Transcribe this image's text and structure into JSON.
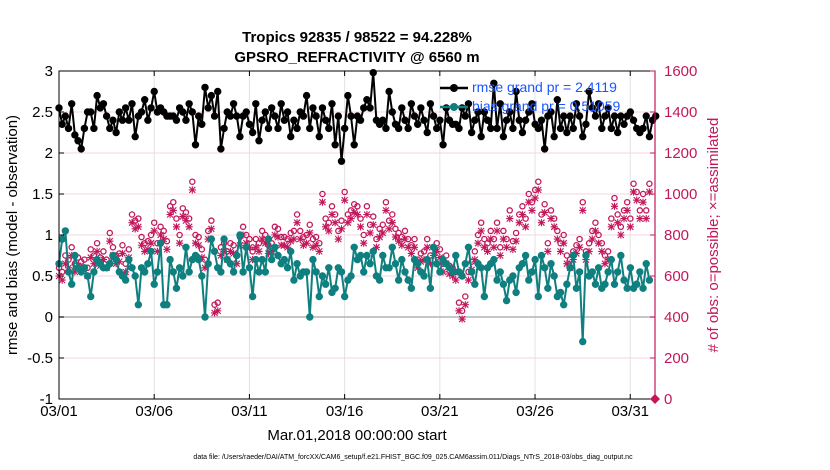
{
  "chart_data": {
    "type": "line",
    "title": "Tropics 92835 / 98522 = 94.228%",
    "subtitle": "GPSRO_REFRACTIVITY @ 6560 m",
    "xlabel": "Mar.01,2018 00:00:00 start",
    "ylabel_left": "rmse and bias (model - observation)",
    "ylabel_right": "# of obs: o=possible; ×=assimilated",
    "x_range": [
      1,
      32.3
    ],
    "ylim_left": [
      -1,
      3
    ],
    "ylim_right": [
      0,
      1600
    ],
    "x_ticks": [
      {
        "value": 1,
        "label": "03/01"
      },
      {
        "value": 6,
        "label": "03/06"
      },
      {
        "value": 11,
        "label": "03/11"
      },
      {
        "value": 16,
        "label": "03/16"
      },
      {
        "value": 21,
        "label": "03/21"
      },
      {
        "value": 26,
        "label": "03/26"
      },
      {
        "value": 31,
        "label": "03/31"
      }
    ],
    "y_ticks_left": [
      "-1",
      "-0.5",
      "0",
      "0.5",
      "1",
      "1.5",
      "2",
      "2.5",
      "3"
    ],
    "y_ticks_right": [
      "0",
      "200",
      "400",
      "600",
      "800",
      "1000",
      "1200",
      "1400",
      "1600"
    ],
    "legend": [
      {
        "name": "rmse grand pr = 2.4119",
        "color": "#000000"
      },
      {
        "name": "bias grand pr = 0.51059",
        "color": "#0f7f7f"
      }
    ],
    "footnote": "data file: /Users/raeder/DAI/ATM_forcXX/CAM6_setup/f.e21.FHIST_BGC.f09_025.CAM6assim.011/Diags_NTrS_2018-03/obs_diag_output.nc",
    "colors": {
      "rmse": "#000000",
      "bias": "#0f7f7f",
      "obs": "#c2185b",
      "zero_line": "#b3b3b3",
      "legend_text": "#1a56ff"
    },
    "series": [
      {
        "name": "rmse",
        "axis": "left",
        "values": [
          2.55,
          2.35,
          2.45,
          2.3,
          2.6,
          2.22,
          2.15,
          2.05,
          2.3,
          2.5,
          2.5,
          2.3,
          2.7,
          2.55,
          2.6,
          2.45,
          2.3,
          2.4,
          2.25,
          2.5,
          2.4,
          2.55,
          2.4,
          2.6,
          2.2,
          2.45,
          2.5,
          2.65,
          2.4,
          2.55,
          2.75,
          2.5,
          2.55,
          2.5,
          2.45,
          2.45,
          2.45,
          2.4,
          2.55,
          2.5,
          2.4,
          2.6,
          2.5,
          2.1,
          2.45,
          2.35,
          2.8,
          2.55,
          2.7,
          2.45,
          2.75,
          2.05,
          2.3,
          2.5,
          2.45,
          2.6,
          2.45,
          2.2,
          2.45,
          2.5,
          2.35,
          2.25,
          2.6,
          2.15,
          2.4,
          2.5,
          2.3,
          2.55,
          2.45,
          2.3,
          2.6,
          2.4,
          2.5,
          2.2,
          2.4,
          2.3,
          2.5,
          2.45,
          2.7,
          2.3,
          2.55,
          2.45,
          2.2,
          2.55,
          2.4,
          2.3,
          2.6,
          2.1,
          2.45,
          1.9,
          2.3,
          2.7,
          2.45,
          2.1,
          2.45,
          2.4,
          2.55,
          2.65,
          2.55,
          2.98,
          2.4,
          2.35,
          2.4,
          2.3,
          2.75,
          2.5,
          2.35,
          2.3,
          2.55,
          2.4,
          2.3,
          2.6,
          2.45,
          2.35,
          2.55,
          2.4,
          2.25,
          2.6,
          2.45,
          2.3,
          2.4,
          2.1,
          2.55,
          2.4,
          2.35,
          2.35,
          2.3,
          2.55,
          2.45,
          2.6,
          2.25,
          2.4,
          2.5,
          2.2,
          2.5,
          2.4,
          2.3,
          2.85,
          2.3,
          2.6,
          2.2,
          2.4,
          2.5,
          2.3,
          2.75,
          2.4,
          2.25,
          2.4,
          2.5,
          2.6,
          2.35,
          2.3,
          2.4,
          2.05,
          2.45,
          2.5,
          2.2,
          2.65,
          2.3,
          2.45,
          2.25,
          2.45,
          2.3,
          2.6,
          2.45,
          2.2,
          2.35,
          2.75,
          2.55,
          2.45,
          2.6,
          2.3,
          2.45,
          2.55,
          2.3,
          2.45,
          2.25,
          2.45,
          2.35,
          2.45,
          2.5,
          2.4,
          2.3,
          2.25,
          2.3,
          2.45,
          2.2,
          2.4,
          2.45
        ]
      },
      {
        "name": "bias",
        "axis": "left",
        "values": [
          0.65,
          0.95,
          1.05,
          0.55,
          0.4,
          0.75,
          0.6,
          0.55,
          0.6,
          0.5,
          0.25,
          0.55,
          0.7,
          0.65,
          0.6,
          0.6,
          0.65,
          0.75,
          0.7,
          0.55,
          0.5,
          0.45,
          0.7,
          0.6,
          0.5,
          0.15,
          0.6,
          0.55,
          0.65,
          0.8,
          0.4,
          0.55,
          0.9,
          0.15,
          0.15,
          0.7,
          0.55,
          0.35,
          0.6,
          0.5,
          0.85,
          0.55,
          0.7,
          0.75,
          0.7,
          0.5,
          0.0,
          0.65,
          0.95,
          0.8,
          0.6,
          0.55,
          0.95,
          0.7,
          0.65,
          0.55,
          0.75,
          1.0,
          0.55,
          0.85,
          0.6,
          0.25,
          0.7,
          0.55,
          0.7,
          0.55,
          0.95,
          0.7,
          0.85,
          0.75,
          0.65,
          0.7,
          0.6,
          0.8,
          0.45,
          0.65,
          0.5,
          0.55,
          0.55,
          0.0,
          0.7,
          0.55,
          0.25,
          0.5,
          0.4,
          0.6,
          0.3,
          0.35,
          0.6,
          0.55,
          0.25,
          0.45,
          0.5,
          0.85,
          0.7,
          0.75,
          0.55,
          0.75,
          0.65,
          0.8,
          0.5,
          0.45,
          0.75,
          0.6,
          0.6,
          0.85,
          0.65,
          0.45,
          0.7,
          0.55,
          0.45,
          0.35,
          0.7,
          0.65,
          0.55,
          0.5,
          0.7,
          0.35,
          0.85,
          0.65,
          0.55,
          0.7,
          0.65,
          0.6,
          0.55,
          0.75,
          0.55,
          0.5,
          0.65,
          0.85,
          0.55,
          0.4,
          0.65,
          0.6,
          0.25,
          0.6,
          0.65,
          0.7,
          0.45,
          0.55,
          0.4,
          0.2,
          0.45,
          0.5,
          0.3,
          0.6,
          0.65,
          0.75,
          0.45,
          0.55,
          0.7,
          0.25,
          0.75,
          0.6,
          0.35,
          0.65,
          0.5,
          0.25,
          0.3,
          0.15,
          0.4,
          0.6,
          0.75,
          0.35,
          0.55,
          -0.3,
          0.75,
          0.5,
          0.55,
          0.4,
          0.6,
          0.35,
          0.4,
          0.55,
          0.7,
          0.4,
          0.55,
          0.75,
          0.45,
          0.35,
          0.6,
          0.35,
          0.4,
          0.55,
          0.35,
          0.65,
          0.45
        ]
      },
      {
        "name": "possible",
        "axis": "right",
        "values": [
          640,
          620,
          700,
          680,
          740,
          660,
          690,
          670,
          680,
          640,
          730,
          700,
          760,
          690,
          720,
          680,
          810,
          740,
          700,
          710,
          750,
          660,
          730,
          900,
          870,
          880,
          790,
          760,
          770,
          800,
          860,
          760,
          840,
          820,
          770,
          940,
          960,
          880,
          800,
          930,
          910,
          880,
          1060,
          800,
          790,
          730,
          680,
          820,
          870,
          460,
          470,
          740,
          760,
          720,
          760,
          750,
          700,
          790,
          840,
          800,
          780,
          720,
          780,
          760,
          820,
          800,
          750,
          760,
          840,
          830,
          790,
          790,
          780,
          810,
          820,
          900,
          820,
          790,
          800,
          850,
          780,
          790,
          760,
          1000,
          880,
          860,
          940,
          900,
          820,
          870,
          1010,
          900,
          920,
          950,
          940,
          880,
          800,
          940,
          850,
          890,
          780,
          830,
          850,
          960,
          870,
          900,
          830,
          810,
          790,
          820,
          780,
          750,
          780,
          680,
          710,
          720,
          780,
          700,
          740,
          760,
          730,
          660,
          700,
          650,
          640,
          620,
          470,
          430,
          500,
          620,
          670,
          720,
          800,
          860,
          780,
          760,
          820,
          780,
          860,
          740,
          820,
          780,
          920,
          770,
          810,
          900,
          940,
          880,
          1000,
          960,
          1020,
          1060,
          900,
          950,
          760,
          920,
          880,
          820,
          760,
          800,
          700,
          680,
          720,
          750,
          780,
          960,
          720,
          760,
          820,
          860,
          800,
          760,
          700,
          720,
          880,
          980,
          900,
          840,
          920,
          960,
          880,
          1050,
          1010,
          920,
          1000,
          920,
          1050
        ]
      },
      {
        "name": "assimilated",
        "axis": "right",
        "values": [
          600,
          580,
          660,
          640,
          700,
          620,
          650,
          630,
          640,
          600,
          690,
          660,
          720,
          650,
          680,
          640,
          770,
          700,
          660,
          670,
          710,
          620,
          690,
          860,
          830,
          840,
          750,
          720,
          730,
          760,
          820,
          720,
          800,
          780,
          730,
          900,
          920,
          840,
          760,
          890,
          870,
          840,
          1020,
          760,
          750,
          690,
          640,
          780,
          830,
          420,
          430,
          700,
          720,
          680,
          720,
          710,
          660,
          750,
          800,
          760,
          740,
          680,
          740,
          720,
          780,
          760,
          710,
          720,
          800,
          790,
          750,
          750,
          740,
          770,
          780,
          860,
          780,
          750,
          760,
          810,
          740,
          750,
          720,
          960,
          840,
          820,
          900,
          860,
          780,
          830,
          970,
          860,
          880,
          910,
          900,
          840,
          760,
          900,
          810,
          850,
          740,
          790,
          810,
          920,
          830,
          860,
          790,
          770,
          750,
          780,
          740,
          710,
          740,
          640,
          670,
          680,
          740,
          660,
          700,
          720,
          690,
          620,
          660,
          610,
          600,
          580,
          430,
          390,
          460,
          580,
          630,
          680,
          760,
          820,
          740,
          720,
          780,
          740,
          820,
          700,
          780,
          740,
          880,
          730,
          770,
          860,
          900,
          840,
          960,
          920,
          980,
          1020,
          860,
          910,
          720,
          880,
          840,
          780,
          720,
          760,
          660,
          640,
          680,
          710,
          740,
          920,
          680,
          720,
          780,
          820,
          760,
          720,
          660,
          680,
          840,
          940,
          860,
          800,
          880,
          920,
          840,
          1010,
          970,
          880,
          960,
          880,
          1010
        ]
      }
    ]
  }
}
